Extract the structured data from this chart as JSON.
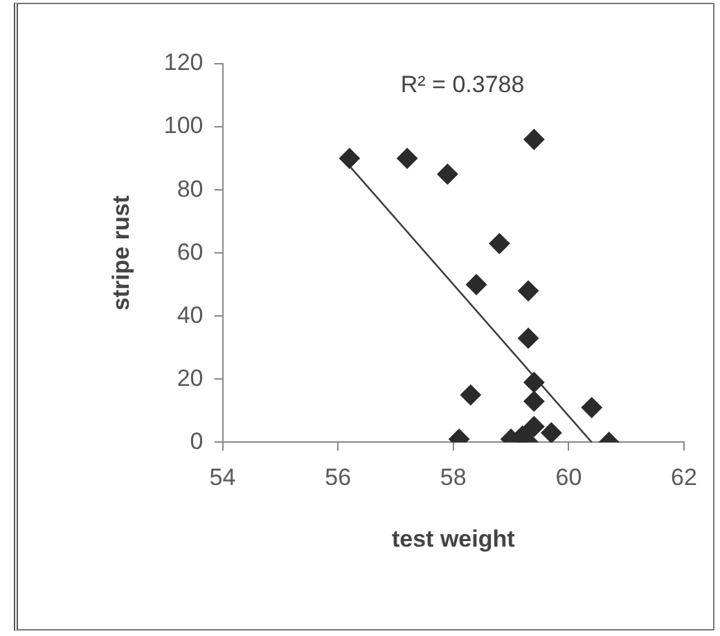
{
  "chart_data": {
    "type": "scatter",
    "xlabel": "test weight",
    "ylabel": "stripe rust",
    "annotations": [
      "R² = 0.3788"
    ],
    "xlim": [
      54,
      62
    ],
    "xticks": [
      54,
      56,
      58,
      60,
      62
    ],
    "ylim": [
      0,
      120
    ],
    "yticks": [
      0,
      20,
      40,
      60,
      80,
      100,
      120
    ],
    "grid": false,
    "legend": false,
    "marker": "diamond",
    "series": [
      {
        "type": "scatter",
        "color": "#2b2b2b",
        "x": [
          56.2,
          57.2,
          57.9,
          59.4,
          58.8,
          58.4,
          59.3,
          59.3,
          59.4,
          58.3,
          59.4,
          60.4,
          58.1,
          59.0,
          59.2,
          59.4,
          59.3,
          59.7,
          60.7
        ],
        "values": [
          90,
          90,
          85,
          96,
          63,
          50,
          48,
          33,
          19,
          15,
          13,
          11,
          1,
          1,
          2,
          5,
          0,
          3,
          0
        ]
      },
      {
        "type": "line",
        "color": "#404040",
        "x": [
          56.2,
          60.4
        ],
        "values": [
          87.6,
          0
        ],
        "marker": "none"
      }
    ]
  }
}
